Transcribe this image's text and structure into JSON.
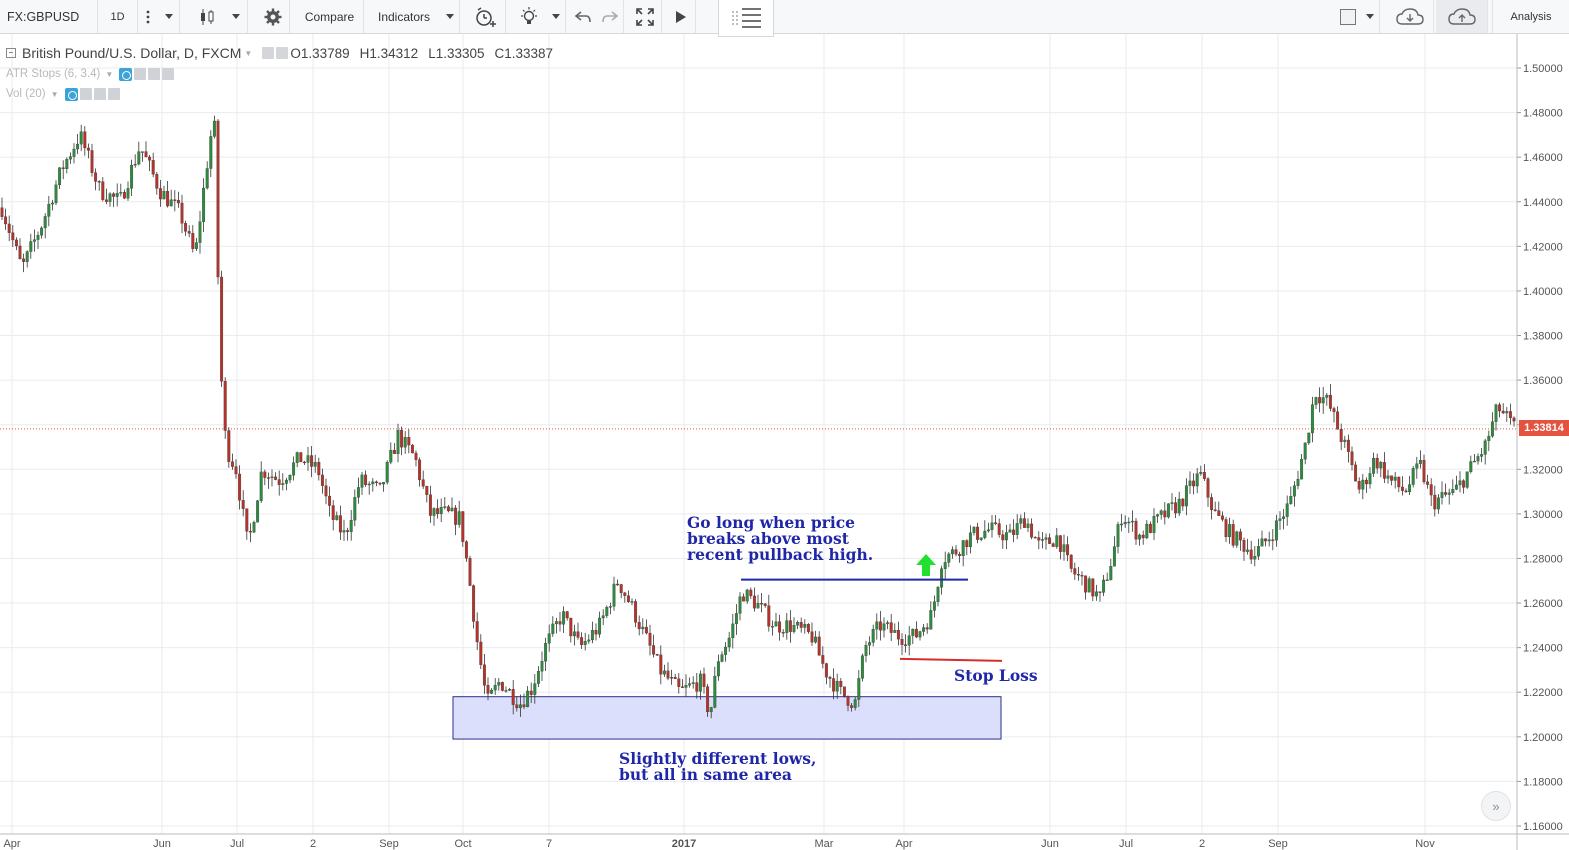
{
  "toolbar": {
    "symbol": "FX:GBPUSD",
    "interval": "1D",
    "compare_label": "Compare",
    "indicators_label": "Indicators",
    "analysis_label": "Analysis"
  },
  "legend": {
    "title": "British Pound/U.S. Dollar, D, FXCM",
    "open": "O1.33789",
    "high": "H1.34312",
    "low": "L1.33305",
    "close": "C1.33387",
    "studies": [
      {
        "label": "ATR Stops (6, 3.4)"
      },
      {
        "label": "Vol (20)"
      }
    ]
  },
  "price_axis": {
    "ticks": [
      "1.50000",
      "1.48000",
      "1.46000",
      "1.44000",
      "1.42000",
      "1.40000",
      "1.38000",
      "1.36000",
      "1.34000",
      "1.32000",
      "1.30000",
      "1.28000",
      "1.26000",
      "1.24000",
      "1.22000",
      "1.20000",
      "1.18000",
      "1.16000"
    ],
    "last_price": "1.33814"
  },
  "time_axis": {
    "labels": [
      "Apr",
      "Jun",
      "Jul",
      "2",
      "Sep",
      "Oct",
      "7",
      "2017",
      "Mar",
      "Apr",
      "Jun",
      "Jul",
      "2",
      "Sep",
      "Nov"
    ]
  },
  "annotations": {
    "go_long": [
      "Go long when price",
      "breaks above most",
      "recent pullback high."
    ],
    "stop_loss": "Stop Loss",
    "lows": [
      "Slightly different lows,",
      "but all in same area"
    ]
  },
  "colors": {
    "up": "#2e8b3e",
    "down": "#b5332a",
    "annotation_text": "#1f27a8",
    "entry_line": "#1f27a8",
    "stop_line": "#d32f2f",
    "zone_fill": "#dcdffb",
    "arrow": "#22e030",
    "price_line": "#e45340"
  },
  "chart_data": {
    "type": "candlestick",
    "symbol": "FX:GBPUSD",
    "timeframe": "D",
    "ylim": [
      1.155,
      1.515
    ],
    "last_price": 1.33814,
    "close_path": [
      [
        0,
        1.44
      ],
      [
        22,
        1.41
      ],
      [
        42,
        1.43
      ],
      [
        62,
        1.455
      ],
      [
        80,
        1.47
      ],
      [
        100,
        1.445
      ],
      [
        120,
        1.44
      ],
      [
        140,
        1.465
      ],
      [
        160,
        1.445
      ],
      [
        180,
        1.435
      ],
      [
        195,
        1.415
      ],
      [
        205,
        1.45
      ],
      [
        214,
        1.48
      ],
      [
        220,
        1.37
      ],
      [
        226,
        1.33
      ],
      [
        236,
        1.32
      ],
      [
        248,
        1.285
      ],
      [
        262,
        1.32
      ],
      [
        280,
        1.315
      ],
      [
        300,
        1.325
      ],
      [
        318,
        1.32
      ],
      [
        330,
        1.3
      ],
      [
        345,
        1.29
      ],
      [
        360,
        1.315
      ],
      [
        380,
        1.31
      ],
      [
        398,
        1.335
      ],
      [
        415,
        1.325
      ],
      [
        430,
        1.3
      ],
      [
        445,
        1.3
      ],
      [
        460,
        1.298
      ],
      [
        468,
        1.275
      ],
      [
        478,
        1.24
      ],
      [
        487,
        1.215
      ],
      [
        500,
        1.225
      ],
      [
        520,
        1.215
      ],
      [
        532,
        1.222
      ],
      [
        545,
        1.24
      ],
      [
        562,
        1.255
      ],
      [
        580,
        1.24
      ],
      [
        600,
        1.25
      ],
      [
        618,
        1.27
      ],
      [
        630,
        1.26
      ],
      [
        645,
        1.245
      ],
      [
        660,
        1.23
      ],
      [
        680,
        1.22
      ],
      [
        700,
        1.225
      ],
      [
        710,
        1.21
      ],
      [
        718,
        1.235
      ],
      [
        730,
        1.245
      ],
      [
        742,
        1.265
      ],
      [
        756,
        1.26
      ],
      [
        775,
        1.25
      ],
      [
        790,
        1.25
      ],
      [
        812,
        1.245
      ],
      [
        825,
        1.23
      ],
      [
        840,
        1.22
      ],
      [
        855,
        1.215
      ],
      [
        865,
        1.24
      ],
      [
        880,
        1.25
      ],
      [
        900,
        1.245
      ],
      [
        915,
        1.245
      ],
      [
        932,
        1.255
      ],
      [
        942,
        1.28
      ],
      [
        955,
        1.283
      ],
      [
        970,
        1.29
      ],
      [
        990,
        1.293
      ],
      [
        1010,
        1.29
      ],
      [
        1025,
        1.298
      ],
      [
        1040,
        1.285
      ],
      [
        1058,
        1.29
      ],
      [
        1070,
        1.275
      ],
      [
        1083,
        1.27
      ],
      [
        1100,
        1.262
      ],
      [
        1112,
        1.28
      ],
      [
        1122,
        1.3
      ],
      [
        1140,
        1.29
      ],
      [
        1160,
        1.298
      ],
      [
        1180,
        1.305
      ],
      [
        1200,
        1.318
      ],
      [
        1215,
        1.3
      ],
      [
        1232,
        1.29
      ],
      [
        1255,
        1.282
      ],
      [
        1270,
        1.29
      ],
      [
        1290,
        1.305
      ],
      [
        1305,
        1.33
      ],
      [
        1315,
        1.355
      ],
      [
        1328,
        1.35
      ],
      [
        1345,
        1.33
      ],
      [
        1360,
        1.31
      ],
      [
        1375,
        1.325
      ],
      [
        1390,
        1.315
      ],
      [
        1405,
        1.31
      ],
      [
        1420,
        1.322
      ],
      [
        1432,
        1.305
      ],
      [
        1455,
        1.31
      ],
      [
        1470,
        1.32
      ],
      [
        1485,
        1.33
      ],
      [
        1498,
        1.348
      ],
      [
        1515,
        1.338
      ]
    ],
    "drawings": {
      "support_zone": {
        "y1": 1.218,
        "y2": 1.199
      },
      "entry_level": 1.2705,
      "stop_level": 1.2345
    }
  }
}
